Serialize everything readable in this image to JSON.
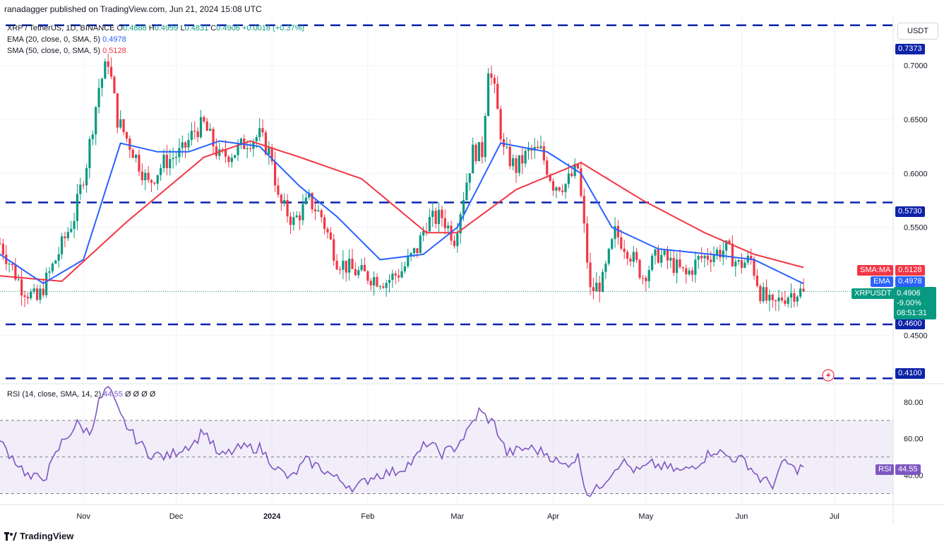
{
  "attribution": "ranadagger published on TradingView.com, Jun 21, 2024 15:08 UTC",
  "legend": {
    "symbol": "XRP / TetherUS, 1D, BINANCE",
    "o_label": "O",
    "o": "0.4888",
    "h_label": "H",
    "h": "0.4959",
    "l_label": "L",
    "l": "0.4831",
    "c_label": "C",
    "c": "0.4906",
    "change": "+0.0018 (+0.37%)",
    "ema_label": "EMA (20, close, 0, SMA, 5)",
    "ema_value": "0.4978",
    "sma_label": "SMA (50, close, 0, SMA, 5)",
    "sma_value": "0.5128"
  },
  "currency_button": "USDT",
  "price_axis_ticks": [
    "0.7000",
    "0.6500",
    "0.6000",
    "0.5500",
    "0.4500"
  ],
  "level_tags": [
    "0.7373",
    "0.5730",
    "0.4600",
    "0.4100"
  ],
  "tags": {
    "sma_ma_label": "SMA:MA",
    "sma_ma_value": "0.5128",
    "ema_label": "EMA",
    "ema_value": "0.4978",
    "symbol_label": "XRPUSDT",
    "price": "0.4906",
    "pct": "-9.00%",
    "countdown": "08:51:31"
  },
  "rsi": {
    "legend_label": "RSI (14, close, SMA, 14, 2)",
    "legend_value": "44.55",
    "legend_extra": "Ø Ø Ø Ø",
    "ticks": [
      "80.00",
      "60.00",
      "40.00"
    ],
    "tag_label": "RSI",
    "tag_value": "44.55"
  },
  "time_axis": [
    "Nov",
    "Dec",
    "2024",
    "Feb",
    "Mar",
    "Apr",
    "May",
    "Jun",
    "Jul"
  ],
  "footer_brand": "TradingView",
  "colors": {
    "up": "#089981",
    "down": "#f23645",
    "ema": "#2962ff",
    "sma": "#f23645",
    "rsi": "#7e57c2",
    "level": "#0d23a8"
  },
  "chart_data": [
    {
      "type": "candlestick",
      "title": "XRP / TetherUS, 1D, BINANCE",
      "y_axis": "USDT",
      "ylim": [
        0.405,
        0.745
      ],
      "x_range": [
        "2023-10-05",
        "2024-07-20"
      ],
      "horizontal_levels": [
        0.7373,
        0.573,
        0.46,
        0.41
      ],
      "last_price": 0.4906,
      "series": [
        {
          "name": "XRPUSDT",
          "anchors": [
            [
              "2023-10-05",
              0.535
            ],
            [
              "2023-10-12",
              0.495
            ],
            [
              "2023-10-17",
              0.482
            ],
            [
              "2023-10-23",
              0.52
            ],
            [
              "2023-10-29",
              0.56
            ],
            [
              "2023-11-02",
              0.61
            ],
            [
              "2023-11-06",
              0.68
            ],
            [
              "2023-11-09",
              0.705
            ],
            [
              "2023-11-12",
              0.65
            ],
            [
              "2023-11-18",
              0.615
            ],
            [
              "2023-11-22",
              0.59
            ],
            [
              "2023-11-27",
              0.61
            ],
            [
              "2023-12-03",
              0.62
            ],
            [
              "2023-12-07",
              0.64
            ],
            [
              "2023-12-10",
              0.645
            ],
            [
              "2023-12-15",
              0.615
            ],
            [
              "2023-12-20",
              0.62
            ],
            [
              "2023-12-24",
              0.63
            ],
            [
              "2023-12-28",
              0.635
            ],
            [
              "2024-01-01",
              0.615
            ],
            [
              "2024-01-03",
              0.575
            ],
            [
              "2024-01-08",
              0.555
            ],
            [
              "2024-01-13",
              0.575
            ],
            [
              "2024-01-17",
              0.56
            ],
            [
              "2024-01-22",
              0.52
            ],
            [
              "2024-01-27",
              0.51
            ],
            [
              "2024-02-01",
              0.505
            ],
            [
              "2024-02-07",
              0.5
            ],
            [
              "2024-02-12",
              0.51
            ],
            [
              "2024-02-17",
              0.53
            ],
            [
              "2024-02-20",
              0.555
            ],
            [
              "2024-02-25",
              0.56
            ],
            [
              "2024-02-29",
              0.54
            ],
            [
              "2024-03-03",
              0.58
            ],
            [
              "2024-03-06",
              0.62
            ],
            [
              "2024-03-09",
              0.62
            ],
            [
              "2024-03-11",
              0.7
            ],
            [
              "2024-03-13",
              0.675
            ],
            [
              "2024-03-16",
              0.62
            ],
            [
              "2024-03-20",
              0.605
            ],
            [
              "2024-03-24",
              0.62
            ],
            [
              "2024-03-28",
              0.62
            ],
            [
              "2024-04-01",
              0.59
            ],
            [
              "2024-04-05",
              0.59
            ],
            [
              "2024-04-09",
              0.605
            ],
            [
              "2024-04-12",
              0.52
            ],
            [
              "2024-04-13",
              0.49
            ],
            [
              "2024-04-17",
              0.5
            ],
            [
              "2024-04-21",
              0.545
            ],
            [
              "2024-04-25",
              0.53
            ],
            [
              "2024-04-30",
              0.505
            ],
            [
              "2024-05-05",
              0.525
            ],
            [
              "2024-05-10",
              0.515
            ],
            [
              "2024-05-14",
              0.505
            ],
            [
              "2024-05-18",
              0.52
            ],
            [
              "2024-05-22",
              0.525
            ],
            [
              "2024-05-27",
              0.53
            ],
            [
              "2024-05-31",
              0.515
            ],
            [
              "2024-06-04",
              0.52
            ],
            [
              "2024-06-07",
              0.49
            ],
            [
              "2024-06-11",
              0.475
            ],
            [
              "2024-06-14",
              0.485
            ],
            [
              "2024-06-18",
              0.49
            ],
            [
              "2024-06-21",
              0.4906
            ]
          ]
        },
        {
          "name": "EMA 20",
          "anchors": [
            [
              "2023-10-05",
              0.525
            ],
            [
              "2023-10-19",
              0.498
            ],
            [
              "2023-11-01",
              0.52
            ],
            [
              "2023-11-13",
              0.628
            ],
            [
              "2023-11-25",
              0.62
            ],
            [
              "2023-12-05",
              0.62
            ],
            [
              "2023-12-15",
              0.63
            ],
            [
              "2023-12-28",
              0.625
            ],
            [
              "2024-01-10",
              0.588
            ],
            [
              "2024-01-22",
              0.56
            ],
            [
              "2024-02-05",
              0.52
            ],
            [
              "2024-02-19",
              0.525
            ],
            [
              "2024-03-01",
              0.55
            ],
            [
              "2024-03-15",
              0.628
            ],
            [
              "2024-03-30",
              0.62
            ],
            [
              "2024-04-10",
              0.6
            ],
            [
              "2024-04-20",
              0.55
            ],
            [
              "2024-05-05",
              0.53
            ],
            [
              "2024-05-22",
              0.525
            ],
            [
              "2024-06-05",
              0.52
            ],
            [
              "2024-06-21",
              0.4978
            ]
          ]
        },
        {
          "name": "SMA 50",
          "anchors": [
            [
              "2023-10-05",
              0.505
            ],
            [
              "2023-10-25",
              0.5
            ],
            [
              "2023-11-15",
              0.555
            ],
            [
              "2023-12-10",
              0.615
            ],
            [
              "2023-12-25",
              0.63
            ],
            [
              "2024-01-10",
              0.615
            ],
            [
              "2024-01-30",
              0.595
            ],
            [
              "2024-02-20",
              0.545
            ],
            [
              "2024-03-01",
              0.545
            ],
            [
              "2024-03-20",
              0.585
            ],
            [
              "2024-04-10",
              0.61
            ],
            [
              "2024-04-30",
              0.575
            ],
            [
              "2024-05-20",
              0.545
            ],
            [
              "2024-06-05",
              0.525
            ],
            [
              "2024-06-21",
              0.5128
            ]
          ]
        }
      ]
    },
    {
      "type": "line",
      "title": "RSI (14, close, SMA, 14, 2)",
      "ylim": [
        24,
        90
      ],
      "band": [
        30,
        70
      ],
      "midline": 50,
      "series": [
        {
          "name": "RSI",
          "values": [
            [
              "2023-10-05",
              58
            ],
            [
              "2023-10-10",
              48
            ],
            [
              "2023-10-15",
              38
            ],
            [
              "2023-10-20",
              40
            ],
            [
              "2023-10-25",
              58
            ],
            [
              "2023-10-30",
              68
            ],
            [
              "2023-11-03",
              63
            ],
            [
              "2023-11-06",
              80
            ],
            [
              "2023-11-09",
              88
            ],
            [
              "2023-11-13",
              72
            ],
            [
              "2023-11-17",
              62
            ],
            [
              "2023-11-22",
              52
            ],
            [
              "2023-11-28",
              50
            ],
            [
              "2023-12-03",
              55
            ],
            [
              "2023-12-07",
              58
            ],
            [
              "2023-12-10",
              65
            ],
            [
              "2023-12-15",
              50
            ],
            [
              "2023-12-22",
              55
            ],
            [
              "2023-12-28",
              55
            ],
            [
              "2024-01-03",
              43
            ],
            [
              "2024-01-07",
              38
            ],
            [
              "2024-01-12",
              48
            ],
            [
              "2024-01-17",
              44
            ],
            [
              "2024-01-22",
              38
            ],
            [
              "2024-01-28",
              33
            ],
            [
              "2024-02-03",
              40
            ],
            [
              "2024-02-10",
              42
            ],
            [
              "2024-02-16",
              48
            ],
            [
              "2024-02-20",
              58
            ],
            [
              "2024-02-25",
              52
            ],
            [
              "2024-02-29",
              55
            ],
            [
              "2024-03-04",
              63
            ],
            [
              "2024-03-08",
              75
            ],
            [
              "2024-03-13",
              68
            ],
            [
              "2024-03-17",
              52
            ],
            [
              "2024-03-24",
              55
            ],
            [
              "2024-03-30",
              52
            ],
            [
              "2024-04-04",
              45
            ],
            [
              "2024-04-09",
              50
            ],
            [
              "2024-04-12",
              30
            ],
            [
              "2024-04-15",
              32
            ],
            [
              "2024-04-19",
              40
            ],
            [
              "2024-04-23",
              48
            ],
            [
              "2024-04-28",
              42
            ],
            [
              "2024-05-03",
              46
            ],
            [
              "2024-05-08",
              44
            ],
            [
              "2024-05-13",
              42
            ],
            [
              "2024-05-18",
              47
            ],
            [
              "2024-05-23",
              54
            ],
            [
              "2024-05-28",
              50
            ],
            [
              "2024-06-02",
              48
            ],
            [
              "2024-06-07",
              38
            ],
            [
              "2024-06-11",
              35
            ],
            [
              "2024-06-15",
              48
            ],
            [
              "2024-06-18",
              43
            ],
            [
              "2024-06-21",
              44.55
            ]
          ]
        }
      ]
    }
  ]
}
